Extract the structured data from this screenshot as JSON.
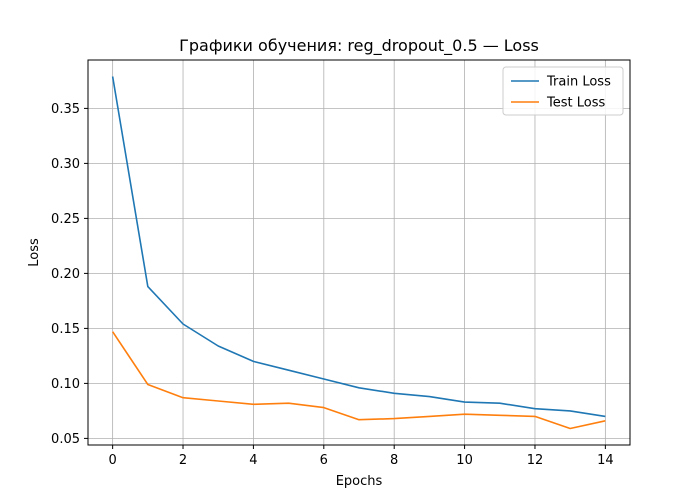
{
  "chart_data": {
    "type": "line",
    "title": "Графики обучения: reg_dropout_0.5 — Loss",
    "xlabel": "Epochs",
    "ylabel": "Loss",
    "x": [
      0,
      1,
      2,
      3,
      4,
      5,
      6,
      7,
      8,
      9,
      10,
      11,
      12,
      13,
      14
    ],
    "xlim": [
      -0.7,
      14.7
    ],
    "ylim": [
      0.044,
      0.394
    ],
    "xticks": [
      0,
      2,
      4,
      6,
      8,
      10,
      12,
      14
    ],
    "yticks": [
      0.05,
      0.1,
      0.15,
      0.2,
      0.25,
      0.3,
      0.35
    ],
    "xtick_labels": [
      "0",
      "2",
      "4",
      "6",
      "8",
      "10",
      "12",
      "14"
    ],
    "ytick_labels": [
      "0.05",
      "0.10",
      "0.15",
      "0.20",
      "0.25",
      "0.30",
      "0.35"
    ],
    "grid": true,
    "legend_position": "top-right",
    "series": [
      {
        "name": "Train Loss",
        "color": "#1f77b4",
        "values": [
          0.379,
          0.188,
          0.154,
          0.134,
          0.12,
          0.112,
          0.104,
          0.096,
          0.091,
          0.088,
          0.083,
          0.082,
          0.077,
          0.075,
          0.07
        ]
      },
      {
        "name": "Test Loss",
        "color": "#ff7f0e",
        "values": [
          0.147,
          0.099,
          0.087,
          0.084,
          0.081,
          0.082,
          0.078,
          0.067,
          0.068,
          0.07,
          0.072,
          0.071,
          0.07,
          0.059,
          0.066
        ]
      }
    ]
  }
}
